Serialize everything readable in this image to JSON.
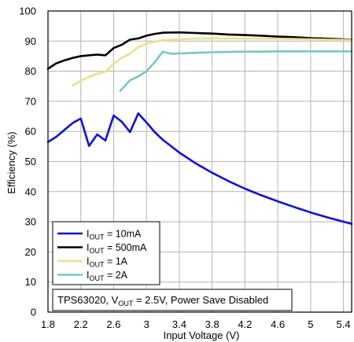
{
  "chart_data": {
    "type": "line",
    "xlabel": "Input Voltage (V)",
    "ylabel": "Efficiency (%)",
    "xlim": [
      1.8,
      5.5
    ],
    "ylim": [
      0,
      100
    ],
    "x_ticks": [
      "1.8",
      "2.2",
      "2.6",
      "3",
      "3.4",
      "3.8",
      "4.2",
      "4.6",
      "5",
      "5.4"
    ],
    "y_ticks": [
      "0",
      "10",
      "20",
      "30",
      "40",
      "50",
      "60",
      "70",
      "80",
      "90",
      "100"
    ],
    "grid": true,
    "legend_position": "bottom-left",
    "annotation": {
      "prefix": "TPS63020, V",
      "sub": "OUT",
      "suffix": " = 2.5V, Power Save Disabled"
    },
    "series": [
      {
        "legend_main": "I",
        "legend_sub": "OUT",
        "legend_value": " = 10mA",
        "color": "#1010d8",
        "x": [
          1.8,
          1.9,
          2.0,
          2.1,
          2.2,
          2.3,
          2.4,
          2.5,
          2.6,
          2.7,
          2.8,
          2.9,
          3.0,
          3.1,
          3.2,
          3.4,
          3.6,
          3.8,
          4.0,
          4.2,
          4.4,
          4.6,
          4.8,
          5.0,
          5.2,
          5.5
        ],
        "y": [
          56.5,
          58.2,
          60.5,
          62.8,
          64.3,
          55.2,
          59.0,
          57.0,
          65.3,
          63.2,
          59.8,
          66.0,
          63.0,
          59.8,
          57.2,
          53.0,
          49.4,
          46.3,
          43.5,
          41.0,
          38.8,
          36.8,
          34.9,
          33.1,
          31.5,
          29.3
        ]
      },
      {
        "legend_main": "I",
        "legend_sub": "OUT",
        "legend_value": " = 500mA",
        "color": "#000000",
        "x": [
          1.8,
          1.9,
          2.0,
          2.1,
          2.2,
          2.3,
          2.4,
          2.5,
          2.6,
          2.7,
          2.8,
          2.9,
          3.0,
          3.1,
          3.2,
          3.4,
          3.6,
          3.8,
          4.0,
          4.2,
          4.4,
          4.6,
          4.8,
          5.0,
          5.2,
          5.5
        ],
        "y": [
          80.8,
          82.6,
          83.6,
          84.4,
          85.0,
          85.3,
          85.5,
          85.3,
          87.7,
          88.8,
          90.5,
          90.9,
          91.8,
          92.4,
          92.8,
          92.9,
          92.7,
          92.5,
          92.2,
          92.0,
          91.8,
          91.5,
          91.3,
          91.0,
          90.8,
          90.5
        ]
      },
      {
        "legend_main": "I",
        "legend_sub": "OUT",
        "legend_value": " = 1A",
        "color": "#ece08a",
        "x": [
          2.1,
          2.2,
          2.3,
          2.4,
          2.5,
          2.6,
          2.7,
          2.8,
          2.9,
          3.0,
          3.1,
          3.2,
          3.4,
          3.6,
          3.8,
          4.0,
          4.2,
          4.4,
          4.6,
          4.8,
          5.0,
          5.2,
          5.5
        ],
        "y": [
          75.3,
          76.8,
          78.2,
          79.2,
          79.8,
          82.5,
          84.5,
          85.8,
          88.0,
          89.2,
          89.8,
          90.3,
          90.6,
          90.8,
          90.9,
          90.9,
          90.9,
          90.8,
          90.8,
          90.7,
          90.6,
          90.5,
          90.4
        ]
      },
      {
        "legend_main": "I",
        "legend_sub": "OUT",
        "legend_value": " = 2A",
        "color": "#79c6c6",
        "x": [
          2.68,
          2.75,
          2.8,
          2.9,
          3.0,
          3.1,
          3.2,
          3.3,
          3.4,
          3.6,
          3.8,
          4.0,
          4.2,
          4.4,
          4.6,
          4.8,
          5.0,
          5.2,
          5.5
        ],
        "y": [
          73.5,
          75.5,
          77.0,
          78.3,
          80.0,
          83.0,
          86.5,
          85.8,
          85.9,
          86.1,
          86.3,
          86.4,
          86.5,
          86.5,
          86.6,
          86.6,
          86.6,
          86.6,
          86.6
        ]
      }
    ]
  }
}
